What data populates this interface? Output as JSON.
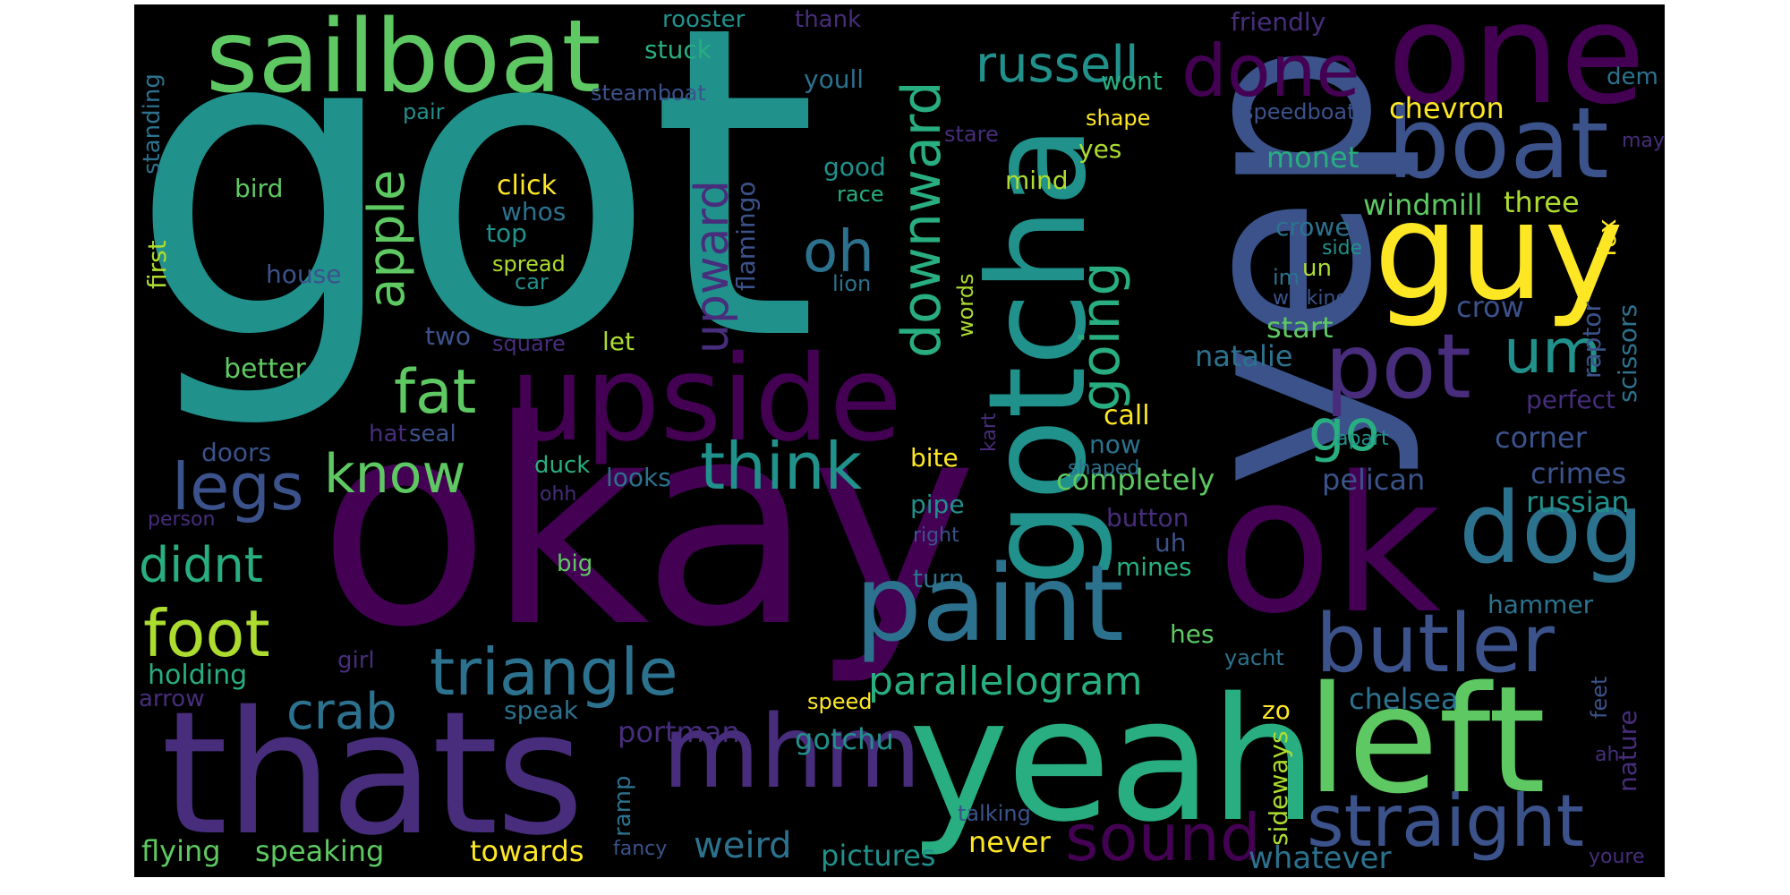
{
  "palette": {
    "background": "#000000",
    "page": "#ffffff",
    "viridis": [
      "#440154",
      "#472d7b",
      "#3b528b",
      "#2c728e",
      "#21918c",
      "#28ae80",
      "#5ec962",
      "#addc30",
      "#fde725"
    ]
  },
  "words": [
    {
      "text": "got",
      "color": "#21918c"
    },
    {
      "text": "okay",
      "color": "#440154"
    },
    {
      "text": "yep",
      "color": "#3b528b"
    },
    {
      "text": "thats",
      "color": "#472d7b"
    },
    {
      "text": "yeah",
      "color": "#28ae80"
    },
    {
      "text": "ok",
      "color": "#440154"
    },
    {
      "text": "gotcha",
      "color": "#21918c"
    },
    {
      "text": "upside",
      "color": "#440154"
    },
    {
      "text": "left",
      "color": "#5ec962"
    },
    {
      "text": "one",
      "color": "#440154"
    },
    {
      "text": "guy",
      "color": "#fde725"
    },
    {
      "text": "sailboat",
      "color": "#5ec962"
    },
    {
      "text": "paint",
      "color": "#2c728e"
    },
    {
      "text": "mhm",
      "color": "#472d7b"
    },
    {
      "text": "boat",
      "color": "#3b528b"
    },
    {
      "text": "dog",
      "color": "#2c728e"
    },
    {
      "text": "pot",
      "color": "#472d7b"
    },
    {
      "text": "butler",
      "color": "#3b528b"
    },
    {
      "text": "straight",
      "color": "#3b528b"
    },
    {
      "text": "done",
      "color": "#440154"
    },
    {
      "text": "triangle",
      "color": "#2c728e"
    },
    {
      "text": "foot",
      "color": "#addc30"
    },
    {
      "text": "sound",
      "color": "#440154"
    },
    {
      "text": "think",
      "color": "#21918c"
    },
    {
      "text": "legs",
      "color": "#3b528b"
    },
    {
      "text": "russell",
      "color": "#21918c"
    },
    {
      "text": "downward",
      "color": "#28ae80"
    },
    {
      "text": "going",
      "color": "#28ae80"
    },
    {
      "text": "fat",
      "color": "#5ec962"
    },
    {
      "text": "apple",
      "color": "#5ec962"
    },
    {
      "text": "oh",
      "color": "#2c728e"
    },
    {
      "text": "upward",
      "color": "#472d7b"
    },
    {
      "text": "um",
      "color": "#21918c"
    },
    {
      "text": "go",
      "color": "#28ae80"
    },
    {
      "text": "know",
      "color": "#5ec962"
    },
    {
      "text": "didnt",
      "color": "#28ae80"
    },
    {
      "text": "crab",
      "color": "#2c728e"
    },
    {
      "text": "parallelogram",
      "color": "#28ae80"
    },
    {
      "text": "weird",
      "color": "#2c728e"
    },
    {
      "text": "whatever",
      "color": "#2c728e"
    },
    {
      "text": "pictures",
      "color": "#21918c"
    },
    {
      "text": "speaking",
      "color": "#5ec962"
    },
    {
      "text": "flying",
      "color": "#5ec962"
    },
    {
      "text": "towards",
      "color": "#fde725"
    },
    {
      "text": "never",
      "color": "#fde725"
    },
    {
      "text": "gotchu",
      "color": "#21918c"
    },
    {
      "text": "portman",
      "color": "#472d7b"
    },
    {
      "text": "chelsea",
      "color": "#2c728e"
    },
    {
      "text": "completely",
      "color": "#5ec962"
    },
    {
      "text": "pelican",
      "color": "#3b528b"
    },
    {
      "text": "russian",
      "color": "#21918c"
    },
    {
      "text": "crimes",
      "color": "#3b528b"
    },
    {
      "text": "corner",
      "color": "#3b528b"
    },
    {
      "text": "perfect",
      "color": "#472d7b"
    },
    {
      "text": "natalie",
      "color": "#2c728e"
    },
    {
      "text": "crow",
      "color": "#3b528b"
    },
    {
      "text": "start",
      "color": "#5ec962"
    },
    {
      "text": "crowe",
      "color": "#2c728e"
    },
    {
      "text": "monet",
      "color": "#28ae80"
    },
    {
      "text": "windmill",
      "color": "#5ec962"
    },
    {
      "text": "three",
      "color": "#addc30"
    },
    {
      "text": "chevron",
      "color": "#fde725"
    },
    {
      "text": "friendly",
      "color": "#472d7b"
    },
    {
      "text": "wont",
      "color": "#28ae80"
    },
    {
      "text": "yes",
      "color": "#addc30"
    },
    {
      "text": "mind",
      "color": "#addc30"
    },
    {
      "text": "good",
      "color": "#21918c"
    },
    {
      "text": "stuck",
      "color": "#28ae80"
    },
    {
      "text": "rooster",
      "color": "#21918c"
    },
    {
      "text": "thank",
      "color": "#472d7b"
    },
    {
      "text": "youll",
      "color": "#2c728e"
    },
    {
      "text": "steamboat",
      "color": "#3b528b"
    },
    {
      "text": "pair",
      "color": "#21918c"
    },
    {
      "text": "bird",
      "color": "#5ec962"
    },
    {
      "text": "click",
      "color": "#fde725"
    },
    {
      "text": "whos",
      "color": "#2c728e"
    },
    {
      "text": "top",
      "color": "#21918c"
    },
    {
      "text": "spread",
      "color": "#addc30"
    },
    {
      "text": "car",
      "color": "#21918c"
    },
    {
      "text": "house",
      "color": "#3b528b"
    },
    {
      "text": "flamingo",
      "color": "#3b528b"
    },
    {
      "text": "race",
      "color": "#28ae80"
    },
    {
      "text": "lion",
      "color": "#2c728e"
    },
    {
      "text": "two",
      "color": "#3b528b"
    },
    {
      "text": "square",
      "color": "#472d7b"
    },
    {
      "text": "let",
      "color": "#addc30"
    },
    {
      "text": "better",
      "color": "#5ec962"
    },
    {
      "text": "doors",
      "color": "#3b528b"
    },
    {
      "text": "hat",
      "color": "#472d7b"
    },
    {
      "text": "seal",
      "color": "#3b528b"
    },
    {
      "text": "duck",
      "color": "#28ae80"
    },
    {
      "text": "looks",
      "color": "#2c728e"
    },
    {
      "text": "ohh",
      "color": "#472d7b"
    },
    {
      "text": "person",
      "color": "#472d7b"
    },
    {
      "text": "big",
      "color": "#5ec962"
    },
    {
      "text": "girl",
      "color": "#472d7b"
    },
    {
      "text": "holding",
      "color": "#28ae80"
    },
    {
      "text": "arrow",
      "color": "#472d7b"
    },
    {
      "text": "speak",
      "color": "#2c728e"
    },
    {
      "text": "speed",
      "color": "#fde725"
    },
    {
      "text": "ramp",
      "color": "#2c728e"
    },
    {
      "text": "fancy",
      "color": "#3b528b"
    },
    {
      "text": "talking",
      "color": "#3b528b"
    },
    {
      "text": "standing",
      "color": "#2c728e"
    },
    {
      "text": "first",
      "color": "#addc30"
    },
    {
      "text": "pipe",
      "color": "#21918c"
    },
    {
      "text": "button",
      "color": "#472d7b"
    },
    {
      "text": "uh",
      "color": "#3b528b"
    },
    {
      "text": "mines",
      "color": "#28ae80"
    },
    {
      "text": "turn",
      "color": "#2c728e"
    },
    {
      "text": "right",
      "color": "#3b528b"
    },
    {
      "text": "bite",
      "color": "#fde725"
    },
    {
      "text": "call",
      "color": "#fde725"
    },
    {
      "text": "now",
      "color": "#2c728e"
    },
    {
      "text": "shaped",
      "color": "#2c728e"
    },
    {
      "text": "apart",
      "color": "#21918c"
    },
    {
      "text": "kart",
      "color": "#472d7b"
    },
    {
      "text": "words",
      "color": "#addc30"
    },
    {
      "text": "stare",
      "color": "#472d7b"
    },
    {
      "text": "shape",
      "color": "#fde725"
    },
    {
      "text": "speedboat",
      "color": "#3b528b"
    },
    {
      "text": "may",
      "color": "#472d7b"
    },
    {
      "text": "dem",
      "color": "#2c728e"
    },
    {
      "text": "side",
      "color": "#21918c"
    },
    {
      "text": "im",
      "color": "#2c728e"
    },
    {
      "text": "un",
      "color": "#addc30"
    },
    {
      "text": "walking",
      "color": "#3b528b"
    },
    {
      "text": "fox",
      "color": "#fde725"
    },
    {
      "text": "scissors",
      "color": "#2c728e"
    },
    {
      "text": "raptor",
      "color": "#3b528b"
    },
    {
      "text": "hammer",
      "color": "#2c728e"
    },
    {
      "text": "hes",
      "color": "#5ec962"
    },
    {
      "text": "yacht",
      "color": "#2c728e"
    },
    {
      "text": "zo",
      "color": "#fde725"
    },
    {
      "text": "sideways",
      "color": "#addc30"
    },
    {
      "text": "feet",
      "color": "#3b528b"
    },
    {
      "text": "nature",
      "color": "#472d7b"
    },
    {
      "text": "ah",
      "color": "#472d7b"
    },
    {
      "text": "youre",
      "color": "#472d7b"
    }
  ]
}
